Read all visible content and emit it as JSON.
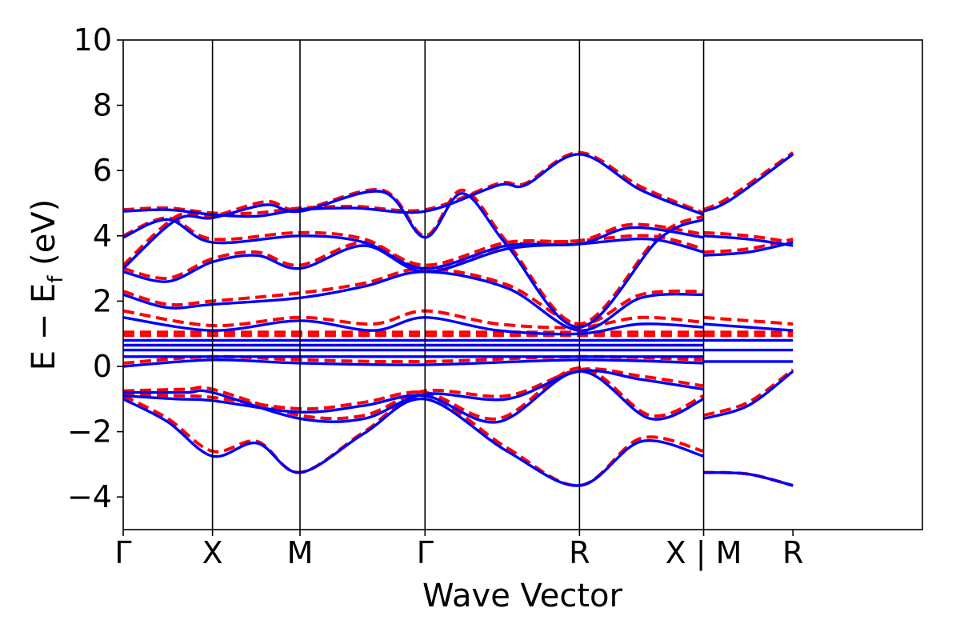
{
  "chart_data": {
    "type": "line",
    "xlabel": "Wave Vector",
    "ylabel": "E − E_f (eV)",
    "ylabel_main": "E − E",
    "ylabel_sub": "f",
    "ylabel_unit": " (eV)",
    "ylim": [
      -5,
      10
    ],
    "xlim": [
      0,
      8.95
    ],
    "yticks": [
      -4,
      -2,
      0,
      2,
      4,
      6,
      8,
      10
    ],
    "ytick_labels": [
      "−4",
      "−2",
      "0",
      "2",
      "4",
      "6",
      "8",
      "10"
    ],
    "kpoints": [
      {
        "x": 0.0,
        "label": "Γ"
      },
      {
        "x": 1.0,
        "label": "X"
      },
      {
        "x": 1.98,
        "label": "M"
      },
      {
        "x": 3.38,
        "label": "Γ"
      },
      {
        "x": 5.11,
        "label": "R"
      },
      {
        "x": 6.5,
        "label": "X | M"
      },
      {
        "x": 7.5,
        "label": "R"
      }
    ],
    "grid": false,
    "legend": "none",
    "series": [
      {
        "style": "dashed",
        "color": "#ff0000",
        "bands": [
          [
            [
              0,
              -0.9
            ],
            [
              0.5,
              -1.6
            ],
            [
              1.0,
              -2.6
            ],
            [
              1.5,
              -2.3
            ],
            [
              1.98,
              -3.25
            ],
            [
              2.7,
              -2.0
            ],
            [
              3.38,
              -0.9
            ],
            [
              4.3,
              -2.5
            ],
            [
              5.11,
              -3.65
            ],
            [
              5.8,
              -2.2
            ],
            [
              6.5,
              -2.6
            ]
          ],
          [
            [
              0,
              -0.85
            ],
            [
              0.6,
              -0.9
            ],
            [
              1.0,
              -0.95
            ],
            [
              1.98,
              -1.3
            ],
            [
              2.7,
              -1.1
            ],
            [
              3.38,
              -0.8
            ],
            [
              4.2,
              -1.6
            ],
            [
              5.11,
              -0.05
            ],
            [
              5.9,
              -1.5
            ],
            [
              6.5,
              -0.9
            ]
          ],
          [
            [
              0,
              -0.75
            ],
            [
              0.7,
              -0.7
            ],
            [
              1.0,
              -0.7
            ],
            [
              1.98,
              -1.5
            ],
            [
              2.7,
              -1.5
            ],
            [
              3.38,
              -0.75
            ],
            [
              4.3,
              -0.9
            ],
            [
              5.11,
              -0.1
            ],
            [
              5.8,
              -0.3
            ],
            [
              6.5,
              -0.6
            ]
          ],
          [
            [
              0,
              0.1
            ],
            [
              1.0,
              0.3
            ],
            [
              1.98,
              0.2
            ],
            [
              3.38,
              0.15
            ],
            [
              5.11,
              0.3
            ],
            [
              6.5,
              0.2
            ]
          ],
          [
            [
              0,
              0.95
            ],
            [
              6.5,
              0.95
            ]
          ],
          [
            [
              0,
              1.05
            ],
            [
              6.5,
              1.05
            ]
          ],
          [
            [
              0,
              1.7
            ],
            [
              1.0,
              1.25
            ],
            [
              1.98,
              1.5
            ],
            [
              2.8,
              1.3
            ],
            [
              3.38,
              1.7
            ],
            [
              4.2,
              1.3
            ],
            [
              5.11,
              1.2
            ],
            [
              5.8,
              1.5
            ],
            [
              6.5,
              1.35
            ]
          ],
          [
            [
              0,
              2.3
            ],
            [
              0.5,
              1.9
            ],
            [
              1.0,
              2.0
            ],
            [
              1.98,
              2.25
            ],
            [
              2.7,
              2.55
            ],
            [
              3.38,
              3.0
            ],
            [
              4.3,
              2.5
            ],
            [
              5.11,
              1.3
            ],
            [
              5.8,
              2.2
            ],
            [
              6.5,
              2.3
            ]
          ],
          [
            [
              0,
              3.0
            ],
            [
              0.5,
              2.7
            ],
            [
              1.0,
              3.3
            ],
            [
              1.5,
              3.5
            ],
            [
              1.98,
              3.1
            ],
            [
              2.7,
              3.8
            ],
            [
              3.38,
              3.0
            ],
            [
              4.3,
              3.7
            ],
            [
              5.11,
              3.85
            ],
            [
              5.9,
              4.0
            ],
            [
              6.5,
              3.6
            ]
          ],
          [
            [
              0,
              4.0
            ],
            [
              0.5,
              4.55
            ],
            [
              1.0,
              3.9
            ],
            [
              1.98,
              4.1
            ],
            [
              2.7,
              3.9
            ],
            [
              3.38,
              3.1
            ],
            [
              4.3,
              3.8
            ],
            [
              5.11,
              3.85
            ],
            [
              5.7,
              4.35
            ],
            [
              6.5,
              4.05
            ]
          ],
          [
            [
              0,
              4.8
            ],
            [
              0.5,
              4.85
            ],
            [
              1.0,
              4.7
            ],
            [
              1.5,
              4.7
            ],
            [
              1.98,
              4.85
            ],
            [
              2.6,
              4.9
            ],
            [
              3.38,
              4.8
            ],
            [
              4.2,
              5.6
            ],
            [
              4.5,
              5.6
            ],
            [
              5.11,
              6.55
            ],
            [
              5.8,
              5.5
            ],
            [
              6.5,
              4.7
            ]
          ],
          [
            [
              0,
              3.1
            ],
            [
              0.6,
              4.6
            ],
            [
              1.0,
              4.6
            ],
            [
              1.6,
              5.05
            ],
            [
              1.98,
              4.8
            ],
            [
              2.9,
              5.4
            ],
            [
              3.38,
              4.0
            ],
            [
              3.8,
              5.4
            ],
            [
              4.3,
              3.8
            ],
            [
              5.11,
              1.3
            ],
            [
              6.0,
              4.0
            ],
            [
              6.5,
              4.6
            ]
          ],
          [
            [
              6.5,
              4.8
            ],
            [
              6.8,
              5.2
            ],
            [
              7.5,
              6.55
            ]
          ],
          [
            [
              6.5,
              4.1
            ],
            [
              7.0,
              4.0
            ],
            [
              7.5,
              3.8
            ]
          ],
          [
            [
              6.5,
              3.5
            ],
            [
              7.0,
              3.6
            ],
            [
              7.5,
              3.9
            ]
          ],
          [
            [
              6.5,
              1.5
            ],
            [
              7.0,
              1.4
            ],
            [
              7.5,
              1.3
            ]
          ],
          [
            [
              6.5,
              1.05
            ],
            [
              7.5,
              1.05
            ]
          ],
          [
            [
              6.5,
              0.95
            ],
            [
              7.5,
              0.95
            ]
          ],
          [
            [
              6.5,
              -1.5
            ],
            [
              7.0,
              -1.1
            ],
            [
              7.5,
              -0.1
            ]
          ],
          [
            [
              6.5,
              -3.25
            ],
            [
              7.0,
              -3.3
            ],
            [
              7.5,
              -3.65
            ]
          ]
        ]
      },
      {
        "style": "solid",
        "color": "#0000ff",
        "bands": [
          [
            [
              0,
              -1.0
            ],
            [
              0.5,
              -1.7
            ],
            [
              1.0,
              -2.75
            ],
            [
              1.5,
              -2.35
            ],
            [
              1.98,
              -3.25
            ],
            [
              2.7,
              -2.05
            ],
            [
              3.38,
              -1.0
            ],
            [
              4.3,
              -2.6
            ],
            [
              5.11,
              -3.65
            ],
            [
              5.8,
              -2.3
            ],
            [
              6.5,
              -2.75
            ]
          ],
          [
            [
              0,
              -0.9
            ],
            [
              0.6,
              -1.0
            ],
            [
              1.0,
              -1.05
            ],
            [
              1.98,
              -1.4
            ],
            [
              2.7,
              -1.2
            ],
            [
              3.38,
              -0.9
            ],
            [
              4.2,
              -1.7
            ],
            [
              5.11,
              -0.15
            ],
            [
              5.9,
              -1.6
            ],
            [
              6.5,
              -1.0
            ]
          ],
          [
            [
              0,
              -0.8
            ],
            [
              0.7,
              -0.8
            ],
            [
              1.0,
              -0.8
            ],
            [
              1.98,
              -1.6
            ],
            [
              2.7,
              -1.6
            ],
            [
              3.38,
              -0.85
            ],
            [
              4.3,
              -1.0
            ],
            [
              5.11,
              -0.15
            ],
            [
              5.8,
              -0.4
            ],
            [
              6.5,
              -0.7
            ]
          ],
          [
            [
              0,
              0.0
            ],
            [
              1.0,
              0.2
            ],
            [
              1.98,
              0.1
            ],
            [
              3.38,
              0.05
            ],
            [
              5.11,
              0.2
            ],
            [
              6.5,
              0.1
            ]
          ],
          [
            [
              0,
              0.3
            ],
            [
              6.5,
              0.3
            ]
          ],
          [
            [
              0,
              0.5
            ],
            [
              6.5,
              0.5
            ]
          ],
          [
            [
              0,
              0.65
            ],
            [
              6.5,
              0.65
            ]
          ],
          [
            [
              0,
              0.8
            ],
            [
              6.5,
              0.8
            ]
          ],
          [
            [
              0,
              1.5
            ],
            [
              1.0,
              1.1
            ],
            [
              1.98,
              1.4
            ],
            [
              2.8,
              1.1
            ],
            [
              3.38,
              1.5
            ],
            [
              4.2,
              1.1
            ],
            [
              5.11,
              1.0
            ],
            [
              5.8,
              1.3
            ],
            [
              6.5,
              1.2
            ]
          ],
          [
            [
              0,
              2.2
            ],
            [
              0.5,
              1.8
            ],
            [
              1.0,
              1.9
            ],
            [
              1.98,
              2.1
            ],
            [
              2.7,
              2.45
            ],
            [
              3.38,
              2.9
            ],
            [
              4.3,
              2.4
            ],
            [
              5.11,
              1.1
            ],
            [
              5.8,
              2.1
            ],
            [
              6.5,
              2.2
            ]
          ],
          [
            [
              0,
              2.9
            ],
            [
              0.5,
              2.6
            ],
            [
              1.0,
              3.2
            ],
            [
              1.5,
              3.4
            ],
            [
              1.98,
              3.0
            ],
            [
              2.7,
              3.7
            ],
            [
              3.38,
              2.9
            ],
            [
              4.3,
              3.6
            ],
            [
              5.11,
              3.75
            ],
            [
              5.9,
              3.9
            ],
            [
              6.5,
              3.5
            ]
          ],
          [
            [
              0,
              3.95
            ],
            [
              0.5,
              4.5
            ],
            [
              1.0,
              3.8
            ],
            [
              1.98,
              4.0
            ],
            [
              2.7,
              3.8
            ],
            [
              3.38,
              3.0
            ],
            [
              4.3,
              3.7
            ],
            [
              5.11,
              3.75
            ],
            [
              5.7,
              4.25
            ],
            [
              6.5,
              3.95
            ]
          ],
          [
            [
              0,
              4.75
            ],
            [
              0.5,
              4.8
            ],
            [
              1.0,
              4.65
            ],
            [
              1.5,
              4.6
            ],
            [
              1.98,
              4.8
            ],
            [
              2.6,
              4.85
            ],
            [
              3.38,
              4.75
            ],
            [
              4.2,
              5.55
            ],
            [
              4.5,
              5.55
            ],
            [
              5.11,
              6.5
            ],
            [
              5.8,
              5.4
            ],
            [
              6.5,
              4.65
            ]
          ],
          [
            [
              0,
              3.0
            ],
            [
              0.6,
              4.5
            ],
            [
              1.0,
              4.55
            ],
            [
              1.6,
              4.95
            ],
            [
              1.98,
              4.75
            ],
            [
              2.9,
              5.35
            ],
            [
              3.38,
              3.95
            ],
            [
              3.8,
              5.3
            ],
            [
              4.3,
              3.7
            ],
            [
              5.11,
              1.2
            ],
            [
              6.0,
              3.9
            ],
            [
              6.5,
              4.5
            ]
          ],
          [
            [
              6.5,
              4.75
            ],
            [
              6.8,
              5.1
            ],
            [
              7.5,
              6.5
            ]
          ],
          [
            [
              6.5,
              4.0
            ],
            [
              7.0,
              3.9
            ],
            [
              7.5,
              3.7
            ]
          ],
          [
            [
              6.5,
              3.4
            ],
            [
              7.0,
              3.5
            ],
            [
              7.5,
              3.8
            ]
          ],
          [
            [
              6.5,
              1.3
            ],
            [
              7.0,
              1.2
            ],
            [
              7.5,
              1.1
            ]
          ],
          [
            [
              6.5,
              0.8
            ],
            [
              7.5,
              0.8
            ]
          ],
          [
            [
              6.5,
              0.5
            ],
            [
              7.5,
              0.5
            ]
          ],
          [
            [
              6.5,
              0.15
            ],
            [
              7.5,
              0.15
            ]
          ],
          [
            [
              6.5,
              -1.6
            ],
            [
              7.0,
              -1.2
            ],
            [
              7.5,
              -0.15
            ]
          ],
          [
            [
              6.5,
              -3.25
            ],
            [
              7.0,
              -3.3
            ],
            [
              7.5,
              -3.65
            ]
          ]
        ]
      }
    ]
  }
}
